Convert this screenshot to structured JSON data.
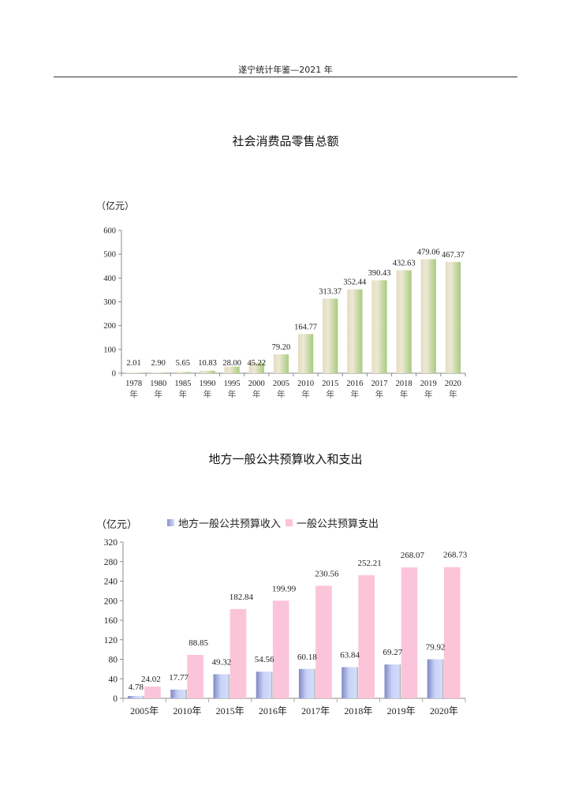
{
  "header": {
    "title": "遂宁统计年鉴—2021 年"
  },
  "chart_data": [
    {
      "type": "bar",
      "title": "社会消费品零售总额",
      "ylabel": "（亿元）",
      "xlabel": "",
      "ylim": [
        0,
        600
      ],
      "yticks": [
        0,
        100,
        200,
        300,
        400,
        500,
        600
      ],
      "categories": [
        "1978年",
        "1980年",
        "1985年",
        "1990年",
        "1995年",
        "2000年",
        "2005年",
        "2010年",
        "2015年",
        "2016年",
        "2017年",
        "2018年",
        "2019年",
        "2020年"
      ],
      "values": [
        2.01,
        2.9,
        5.65,
        10.83,
        28.0,
        45.22,
        79.2,
        164.77,
        313.37,
        352.44,
        390.43,
        432.63,
        479.06,
        467.37
      ],
      "value_labels": [
        "2.01",
        "2.90",
        "5.65",
        "10.83",
        "28.00",
        "45.22",
        "79.20",
        "164.77",
        "313.37",
        "352.44",
        "390.43",
        "432.63",
        "479.06",
        "467.37"
      ],
      "colors": {
        "bar_light": "#e8e0c4",
        "bar_dark": "#a8cc80"
      },
      "grid": false,
      "legend": null
    },
    {
      "type": "bar",
      "title": "地方一般公共预算收入和支出",
      "ylabel": "（亿元）",
      "xlabel": "",
      "ylim": [
        0,
        320
      ],
      "yticks": [
        0,
        40,
        80,
        120,
        160,
        200,
        240,
        280,
        320
      ],
      "categories": [
        "2005年",
        "2010年",
        "2015年",
        "2016年",
        "2017年",
        "2018年",
        "2019年",
        "2020年"
      ],
      "series": [
        {
          "name": "地方一般公共预算收入",
          "values": [
            4.78,
            17.77,
            49.32,
            54.56,
            60.18,
            63.84,
            69.27,
            79.92
          ],
          "labels": [
            "4.78",
            "17.77",
            "49.32",
            "54.56",
            "60.18",
            "63.84",
            "69.27",
            "79.92"
          ],
          "color": "#b8c4ee"
        },
        {
          "name": "一般公共预算支出",
          "values": [
            24.02,
            88.85,
            182.84,
            199.99,
            230.56,
            252.21,
            268.07,
            268.73
          ],
          "labels": [
            "24.02",
            "88.85",
            "182.84",
            "199.99",
            "230.56",
            "252.21",
            "268.07",
            "268.73"
          ],
          "color": "#fcc4d8"
        }
      ],
      "grid": false,
      "legend_position": "top"
    }
  ]
}
